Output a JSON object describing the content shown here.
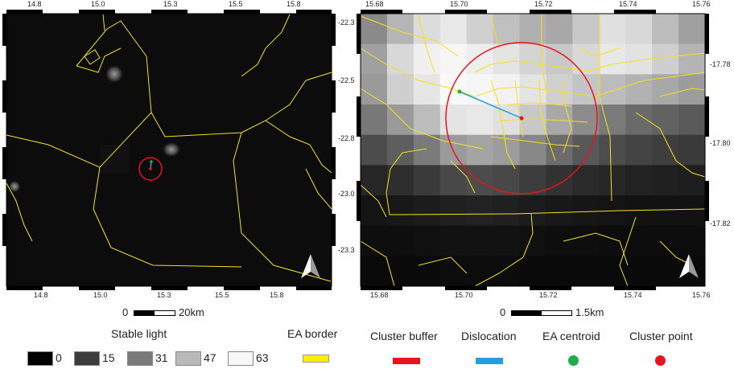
{
  "left_map": {
    "top_ticks": [
      "14.8",
      "15.0",
      "15.3",
      "15.5",
      "15.8"
    ],
    "bottom_ticks": [
      "14.8",
      "15.0",
      "15.3",
      "15.5",
      "15.8"
    ],
    "right_ticks": [
      "-22.3",
      "-22.5",
      "-22.8",
      "-23.0",
      "-23.3"
    ],
    "scale": {
      "zero": "0",
      "label": "20km"
    }
  },
  "right_map": {
    "top_ticks": [
      "15.68",
      "15.70",
      "15.72",
      "15.74",
      "15.76"
    ],
    "bottom_ticks": [
      "15.68",
      "15.70",
      "15.72",
      "15.74",
      "15.76"
    ],
    "right_ticks": [
      "-17.78",
      "-17.80",
      "-17.82"
    ],
    "scale": {
      "zero": "0",
      "label": "1.5km"
    }
  },
  "legend": {
    "stable_light_title": "Stable light",
    "stable_light_levels": [
      {
        "label": "0",
        "color": "#000000"
      },
      {
        "label": "15",
        "color": "#3c3c3c"
      },
      {
        "label": "31",
        "color": "#7a7a7a"
      },
      {
        "label": "47",
        "color": "#b9b9b9"
      },
      {
        "label": "63",
        "color": "#f7f7f7"
      }
    ],
    "ea_border": {
      "label": "EA border",
      "color": "#ffee00"
    },
    "cluster_buffer": {
      "label": "Cluster buffer",
      "color": "#e8141c"
    },
    "dislocation": {
      "label": "Dislocation",
      "color": "#22a0e0"
    },
    "ea_centroid": {
      "label": "EA centroid",
      "color": "#1fae4a"
    },
    "cluster_point": {
      "label": "Cluster point",
      "color": "#e8141c"
    }
  },
  "north_arrow_icon": "north-arrow-icon"
}
